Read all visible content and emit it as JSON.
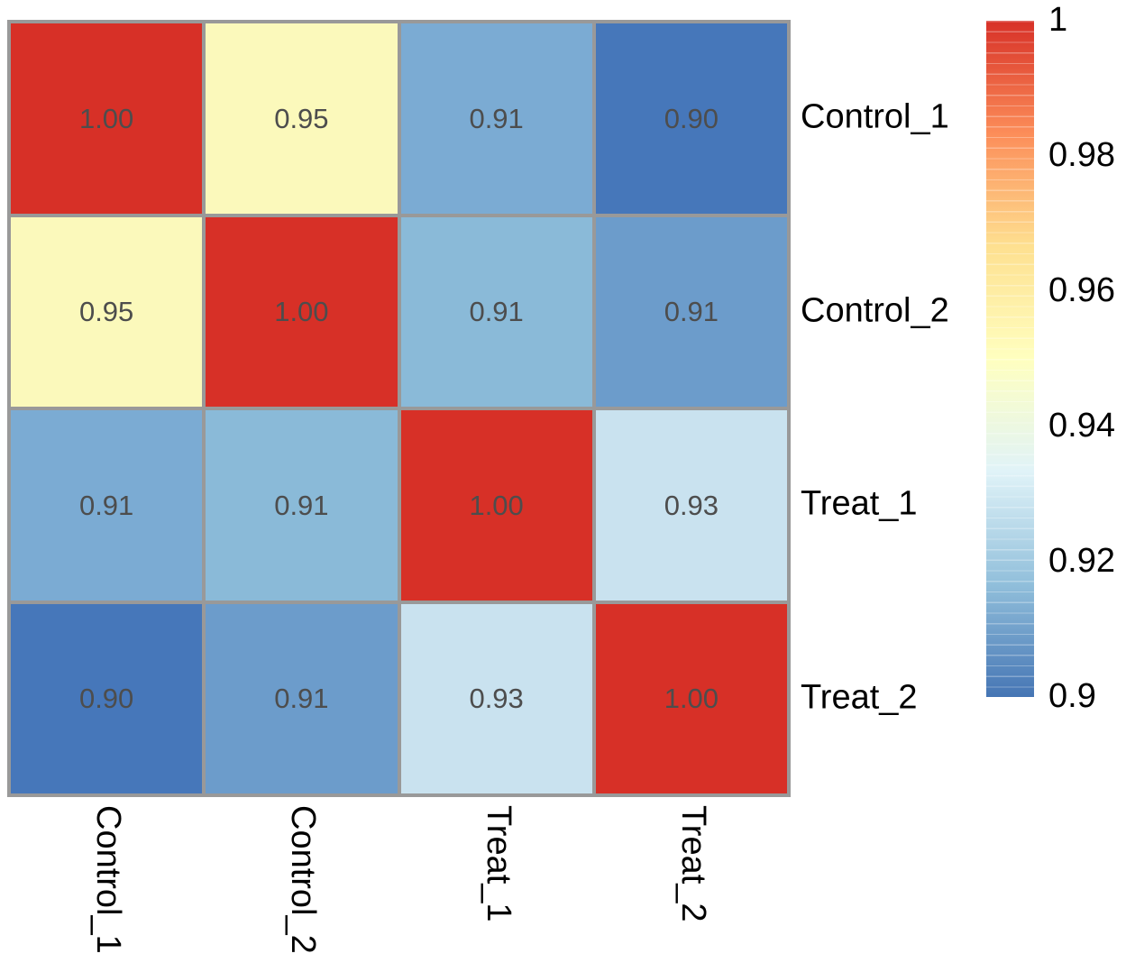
{
  "chart_data": {
    "type": "heatmap",
    "title": "",
    "rows": [
      "Control_1",
      "Control_2",
      "Treat_1",
      "Treat_2"
    ],
    "columns": [
      "Control_1",
      "Control_2",
      "Treat_1",
      "Treat_2"
    ],
    "values": [
      [
        1.0,
        0.95,
        0.91,
        0.9
      ],
      [
        0.95,
        1.0,
        0.91,
        0.91
      ],
      [
        0.91,
        0.91,
        1.0,
        0.93
      ],
      [
        0.9,
        0.91,
        0.93,
        1.0
      ]
    ],
    "cell_labels": [
      [
        "1.00",
        "0.95",
        "0.91",
        "0.90"
      ],
      [
        "0.95",
        "1.00",
        "0.91",
        "0.91"
      ],
      [
        "0.91",
        "0.91",
        "1.00",
        "0.93"
      ],
      [
        "0.90",
        "0.91",
        "0.93",
        "1.00"
      ]
    ],
    "cell_colors": [
      [
        "#D73027",
        "#FBF9BB",
        "#7BABD3",
        "#4677BA"
      ],
      [
        "#FBF9BB",
        "#D73027",
        "#8ABAD8",
        "#6C9CCB"
      ],
      [
        "#7BABD3",
        "#8ABAD8",
        "#D73027",
        "#C9E2EF"
      ],
      [
        "#4677BA",
        "#6C9CCB",
        "#C9E2EF",
        "#D73027"
      ]
    ],
    "colorbar": {
      "min": 0.9,
      "max": 1.0,
      "ticks": [
        {
          "label": "1",
          "value": 1.0
        },
        {
          "label": "0.98",
          "value": 0.98
        },
        {
          "label": "0.96",
          "value": 0.96
        },
        {
          "label": "0.94",
          "value": 0.94
        },
        {
          "label": "0.92",
          "value": 0.92
        },
        {
          "label": "0.9",
          "value": 0.9
        }
      ],
      "gradient_bottom_to_top": [
        "#4575B4",
        "#91BFDB",
        "#E0F3F8",
        "#FFFFBF",
        "#FEE090",
        "#FC8D59",
        "#D73027"
      ]
    },
    "legend_position": "right",
    "grid_line_color": "#999999",
    "number_color": "#4D4D4D",
    "label_color": "#000000"
  }
}
